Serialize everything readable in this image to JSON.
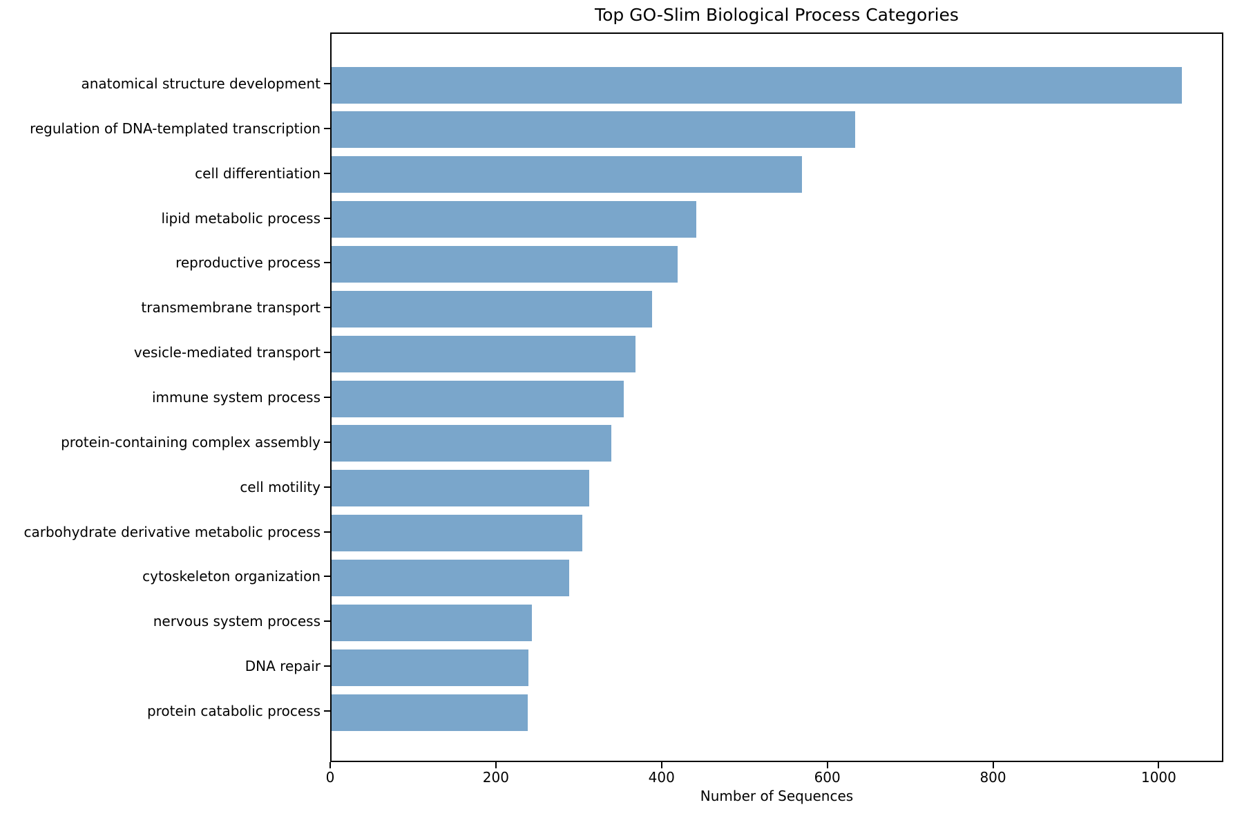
{
  "chart_data": {
    "type": "bar",
    "orientation": "horizontal",
    "title": "Top GO-Slim Biological Process Categories",
    "xlabel": "Number of Sequences",
    "ylabel": "",
    "categories": [
      "anatomical structure development",
      "regulation of DNA-templated transcription",
      "cell differentiation",
      "lipid metabolic process",
      "reproductive process",
      "transmembrane transport",
      "vesicle-mediated transport",
      "immune system process",
      "protein-containing complex assembly",
      "cell motility",
      "carbohydrate derivative metabolic process",
      "cytoskeleton organization",
      "nervous system process",
      "DNA repair",
      "protein catabolic process"
    ],
    "values": [
      1026,
      632,
      568,
      440,
      418,
      387,
      367,
      353,
      338,
      311,
      303,
      287,
      242,
      238,
      237
    ],
    "x_ticks": [
      0,
      200,
      400,
      600,
      800,
      1000
    ],
    "xlim": [
      0,
      1078
    ],
    "grid": false,
    "legend": null,
    "bar_color": "#7aa6cb",
    "axis_color": "#000000",
    "background_color": "#ffffff"
  }
}
